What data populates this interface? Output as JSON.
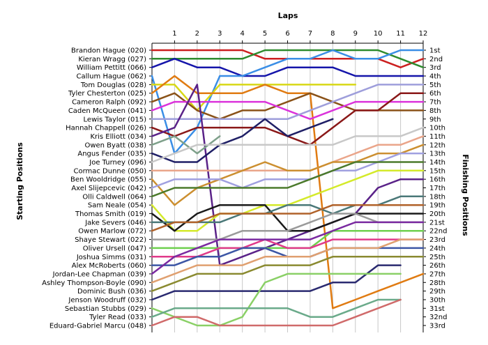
{
  "chart_data": {
    "type": "line",
    "title": "Laps",
    "ylabel_left": "Starting Positions",
    "ylabel_right": "Finishing Positions",
    "x_ticks": [
      "1",
      "2",
      "3",
      "4",
      "5",
      "6",
      "7",
      "8",
      "9",
      "10",
      "11",
      "12"
    ],
    "finish_labels": [
      "1st",
      "2nd",
      "3rd",
      "4th",
      "5th",
      "6th",
      "7th",
      "8th",
      "9th",
      "10th",
      "11th",
      "12th",
      "13th",
      "14th",
      "15th",
      "16th",
      "17th",
      "18th",
      "19th",
      "20th",
      "21st",
      "22nd",
      "23rd",
      "24th",
      "25th",
      "26th",
      "27th",
      "28th",
      "29th",
      "30th",
      "31st",
      "32nd",
      "33rd"
    ],
    "ylim": [
      1,
      33
    ],
    "y_reversed": true,
    "grid": "vertical",
    "series": [
      {
        "name": "Brandon Hague (020)",
        "color": "#cc1f1f",
        "positions": [
          1,
          1,
          1,
          1,
          1,
          2,
          2,
          2,
          2,
          2,
          2,
          3,
          2
        ]
      },
      {
        "name": "Kieran Wragg (027)",
        "color": "#2e8b2e",
        "positions": [
          2,
          2,
          2,
          2,
          2,
          1,
          1,
          1,
          1,
          1,
          1,
          2,
          3
        ]
      },
      {
        "name": "William Pettitt (066)",
        "color": "#1515aa",
        "positions": [
          3,
          2,
          3,
          3,
          4,
          4,
          3,
          3,
          3,
          4,
          4,
          4,
          4
        ]
      },
      {
        "name": "Callum Hague (062)",
        "color": "#3a8ee6",
        "positions": [
          4,
          13,
          10,
          4,
          4,
          3,
          2,
          2,
          1,
          2,
          2,
          1,
          1
        ]
      },
      {
        "name": "Tom Douglas (028)",
        "color": "#d8d815",
        "positions": [
          5,
          5,
          8,
          5,
          5,
          5,
          5,
          5,
          5,
          5
        ]
      },
      {
        "name": "Tyler Chesterton (025)",
        "color": "#e07b12",
        "positions": [
          6,
          4,
          6,
          6,
          6,
          5,
          6,
          6,
          31,
          30,
          29,
          28,
          27
        ]
      },
      {
        "name": "Cameron Ralph (092)",
        "color": "#8a5218",
        "positions": [
          7,
          6,
          8,
          9,
          8,
          8,
          7,
          6,
          7,
          8,
          8,
          8,
          8
        ]
      },
      {
        "name": "Caden McQueen (041)",
        "color": "#db33db",
        "positions": [
          8,
          7,
          7,
          7,
          7,
          7,
          8,
          9,
          8,
          7,
          7,
          7,
          7
        ]
      },
      {
        "name": "Lewis Taylor (015)",
        "color": "#9e9edb",
        "positions": [
          9,
          9,
          9,
          9,
          9,
          9,
          9,
          8,
          7,
          6,
          5,
          5,
          5
        ]
      },
      {
        "name": "Hannah Chappell (026)",
        "color": "#8a1818",
        "positions": [
          10,
          11,
          10,
          10,
          10,
          10,
          11,
          12,
          10,
          8,
          8,
          6,
          6
        ]
      },
      {
        "name": "Kris Elliott (034)",
        "color": "#5a2288",
        "positions": [
          11,
          10,
          5,
          26,
          25,
          24,
          23,
          22,
          21,
          20,
          17,
          16,
          16
        ]
      },
      {
        "name": "Owen Byatt (038)",
        "color": "#7ea08a",
        "positions": [
          12,
          11,
          13,
          11
        ]
      },
      {
        "name": "Angus Fender (035)",
        "color": "#1f1f66",
        "positions": [
          13,
          14,
          14,
          12,
          11,
          9,
          11,
          10,
          9
        ]
      },
      {
        "name": "Joe Turney (096)",
        "color": "#c8c8c8",
        "positions": [
          14,
          13,
          12,
          12,
          12,
          12,
          12,
          12,
          12,
          11,
          11,
          11,
          10
        ]
      },
      {
        "name": "Cormac Dunne (050)",
        "color": "#eaa58a",
        "positions": [
          15,
          15,
          15,
          15,
          15,
          15,
          15,
          15,
          14,
          13,
          12,
          12,
          11
        ]
      },
      {
        "name": "Ben Wooldridge (055)",
        "color": "#cc8f30",
        "positions": [
          16,
          19,
          17,
          16,
          15,
          14,
          15,
          15,
          14,
          14,
          13,
          13,
          12
        ]
      },
      {
        "name": "Axel Slijepcevic (042)",
        "color": "#a0a0e0",
        "positions": [
          17,
          16,
          16,
          16,
          17,
          16,
          16,
          16,
          15,
          15,
          14,
          13,
          13
        ]
      },
      {
        "name": "Olli Caldwell (064)",
        "color": "#4b7a2b",
        "positions": [
          18,
          17,
          17,
          17,
          17,
          17,
          17,
          16,
          15,
          14,
          14,
          14,
          14
        ]
      },
      {
        "name": "Sam Neale (054)",
        "color": "#d4ea2a",
        "positions": [
          19,
          22,
          22,
          20,
          20,
          19,
          19,
          18,
          17,
          16,
          15,
          15,
          15
        ]
      },
      {
        "name": "Thomas Smith (019)",
        "color": "#1a1a1a",
        "positions": [
          20,
          22,
          20,
          19,
          19,
          19,
          22,
          22,
          21,
          20,
          20,
          20,
          20
        ]
      },
      {
        "name": "Jake Severs (046)",
        "color": "#4a7878",
        "positions": [
          21,
          21,
          21,
          21,
          20,
          20,
          19,
          19,
          20,
          19,
          19,
          18,
          18
        ]
      },
      {
        "name": "Owen Marlow (072)",
        "color": "#b0622a",
        "positions": [
          22,
          21,
          21,
          20,
          20,
          20,
          20,
          20,
          19,
          19,
          19,
          19,
          19
        ]
      },
      {
        "name": "Shaye Stewart (022)",
        "color": "#9a9a9a",
        "positions": [
          23,
          23,
          23,
          23,
          22,
          22,
          22,
          21,
          20,
          20,
          21,
          21,
          21
        ]
      },
      {
        "name": "Oliver Ursell (047)",
        "color": "#6fd04f",
        "positions": [
          24,
          24,
          24,
          24,
          24,
          24,
          24,
          24,
          22,
          22,
          22,
          22,
          22
        ]
      },
      {
        "name": "Joshua Simms (031)",
        "color": "#e03a8a",
        "positions": [
          25,
          25,
          25,
          24,
          24,
          23,
          24,
          24,
          23,
          23,
          23,
          23,
          23
        ]
      },
      {
        "name": "Alex McRoberts (060)",
        "color": "#3c56a5",
        "positions": [
          26,
          26,
          25,
          25,
          24,
          24,
          25,
          25,
          24,
          24,
          24,
          24,
          24
        ]
      },
      {
        "name": "Jordan-Lee Chapman (039)",
        "color": "#7a2aa0",
        "positions": [
          27,
          25,
          24,
          23,
          23,
          23,
          23,
          23,
          22,
          21,
          21,
          21,
          21
        ]
      },
      {
        "name": "Ashley Thompson-Boyle (090)",
        "color": "#e0a070",
        "positions": [
          28,
          27,
          26,
          26,
          26,
          25,
          25,
          25,
          24,
          24,
          24,
          23,
          23
        ]
      },
      {
        "name": "Dominic Bush (036)",
        "color": "#8a8a30",
        "positions": [
          29,
          28,
          27,
          27,
          27,
          26,
          26,
          26,
          25,
          25,
          25,
          25,
          25
        ]
      },
      {
        "name": "Jenson Woodruff (032)",
        "color": "#2a2a70",
        "positions": [
          30,
          29,
          29,
          29,
          29,
          29,
          29,
          29,
          28,
          28,
          26,
          26
        ]
      },
      {
        "name": "Sebastian Stubbs (029)",
        "color": "#8ad066",
        "positions": [
          31,
          32,
          33,
          33,
          32,
          28,
          27,
          27,
          27,
          27,
          27,
          27
        ]
      },
      {
        "name": "Tyler Read (033)",
        "color": "#6aaa8a",
        "positions": [
          32,
          31,
          31,
          31,
          31,
          31,
          31,
          32,
          32,
          31,
          30,
          30
        ]
      },
      {
        "name": "Eduard-Gabriel Marcu (048)",
        "color": "#d06a6a",
        "positions": [
          33,
          32,
          32,
          33,
          33,
          33,
          33,
          33,
          33,
          32,
          31,
          30
        ]
      }
    ]
  }
}
